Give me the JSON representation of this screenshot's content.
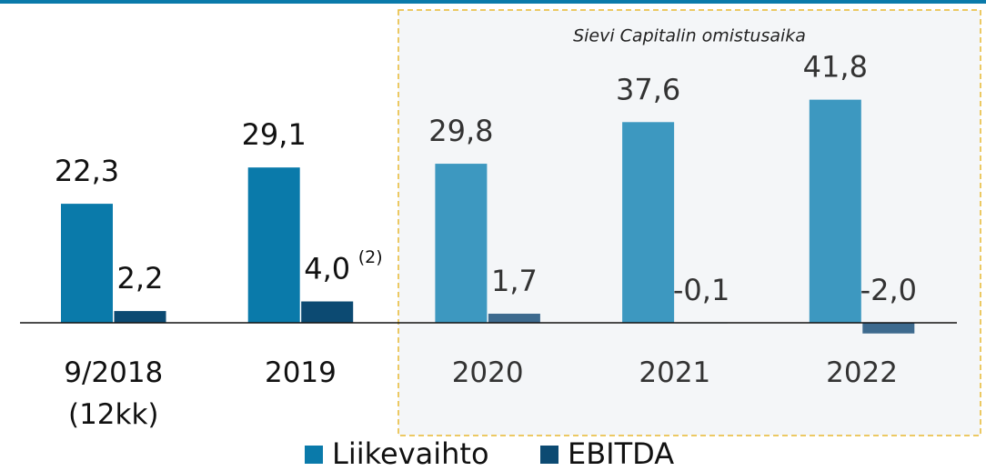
{
  "chart_data": {
    "type": "bar",
    "categories": [
      "9/2018 (12kk)",
      "2019",
      "2020",
      "2021",
      "2022"
    ],
    "series": [
      {
        "name": "Liikevaihto",
        "color": "#0a7aaa",
        "colors": [
          "#0a7aaa",
          "#0a7aaa",
          "#3d98c0",
          "#3d98c0",
          "#3d98c0"
        ],
        "values": [
          22.3,
          29.1,
          29.8,
          37.6,
          41.8
        ],
        "value_labels": [
          "22,3",
          "29,1",
          "29,8",
          "37,6",
          "41,8"
        ]
      },
      {
        "name": "EBITDA",
        "color": "#0c4a72",
        "colors": [
          "#0c4a72",
          "#0c4a72",
          "#3d6a8e",
          "#3d6a8e",
          "#3d6a8e"
        ],
        "values": [
          2.2,
          4.0,
          1.7,
          -0.1,
          -2.0
        ],
        "value_labels": [
          "2,2",
          "4,0",
          "1,7",
          "-0,1",
          "-2,0"
        ]
      }
    ],
    "note": "(2)",
    "highlight_label": "Sievi Capitalin omistusaika"
  }
}
